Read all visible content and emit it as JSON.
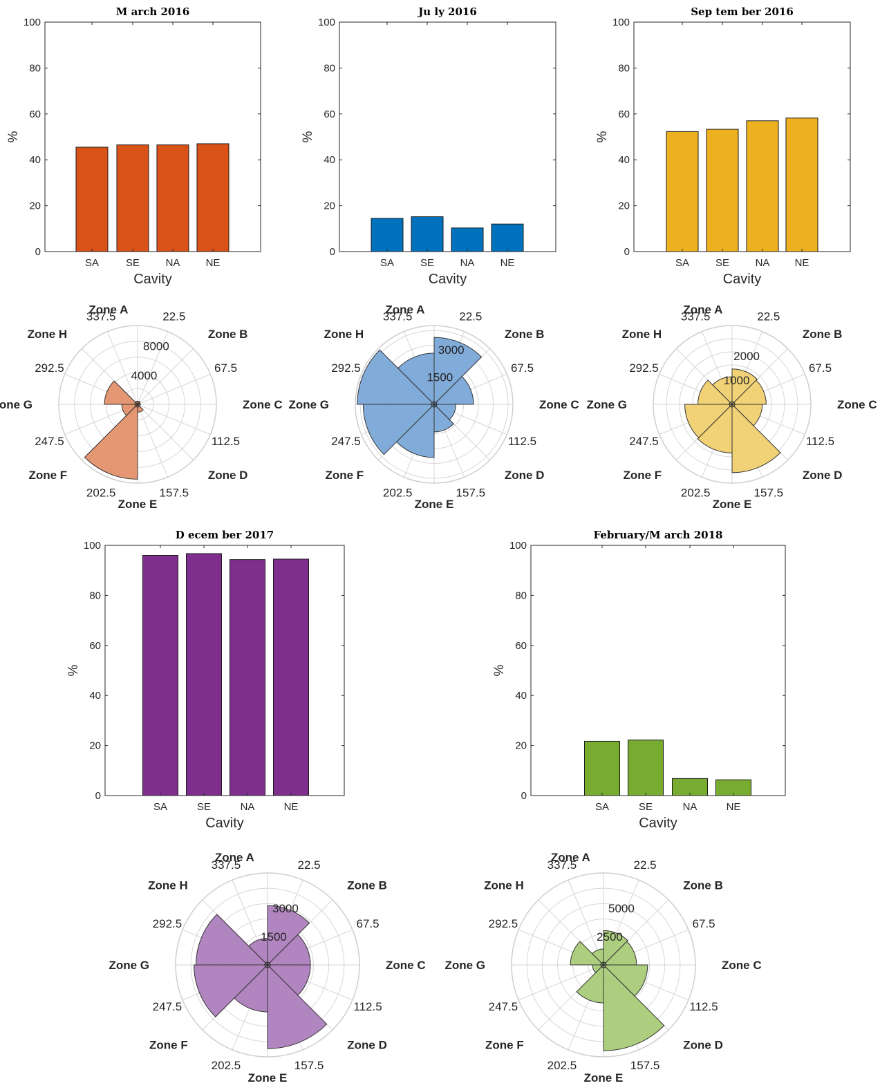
{
  "chart_data": [
    {
      "type": "bar",
      "title": "M arch 2016",
      "categories": [
        "SA",
        "SE",
        "NA",
        "NE"
      ],
      "values": [
        45.5,
        46.5,
        46.5,
        47
      ],
      "ylabel": "%",
      "xlabel": "Cavity",
      "ylim": [
        0,
        100
      ],
      "yticks": [
        0,
        20,
        40,
        60,
        80,
        100
      ],
      "color": "#D95319"
    },
    {
      "type": "polar-histogram",
      "angle_labels": [
        "22.5",
        "67.5",
        "112.5",
        "157.5",
        "202.5",
        "247.5",
        "292.5",
        "337.5"
      ],
      "zone_labels": [
        "Zone A",
        "Zone B",
        "Zone C",
        "Zone D",
        "Zone E",
        "Zone F",
        "Zone G",
        "Zone H"
      ],
      "rlim": [
        0,
        10000
      ],
      "rticks": [
        4000,
        8000
      ],
      "values": [
        400,
        300,
        200,
        1000,
        9500,
        2000,
        4200,
        400
      ],
      "color": "#E3916A"
    },
    {
      "type": "bar",
      "title": "Ju ly 2016",
      "categories": [
        "SA",
        "SE",
        "NA",
        "NE"
      ],
      "values": [
        14.5,
        15.2,
        10.3,
        12
      ],
      "ylabel": "%",
      "xlabel": "Cavity",
      "ylim": [
        0,
        100
      ],
      "yticks": [
        0,
        20,
        40,
        60,
        80,
        100
      ],
      "color": "#0072BD"
    },
    {
      "type": "polar-histogram",
      "angle_labels": [
        "22.5",
        "67.5",
        "112.5",
        "157.5",
        "202.5",
        "247.5",
        "292.5",
        "337.5"
      ],
      "zone_labels": [
        "Zone A",
        "Zone B",
        "Zone C",
        "Zone D",
        "Zone E",
        "Zone F",
        "Zone G",
        "Zone H"
      ],
      "rlim": [
        0,
        4000
      ],
      "rticks": [
        1500,
        3000
      ],
      "values": [
        3400,
        2000,
        1100,
        1400,
        2700,
        3600,
        3900,
        2600
      ],
      "color": "#7AA8D8"
    },
    {
      "type": "bar",
      "title": "Sep tem ber 2016",
      "categories": [
        "SA",
        "SE",
        "NA",
        "NE"
      ],
      "values": [
        52.3,
        53.3,
        57,
        58.2
      ],
      "ylabel": "%",
      "xlabel": "Cavity",
      "ylim": [
        0,
        100
      ],
      "yticks": [
        0,
        20,
        40,
        60,
        80,
        100
      ],
      "color": "#EDB120"
    },
    {
      "type": "polar-histogram",
      "angle_labels": [
        "22.5",
        "67.5",
        "112.5",
        "157.5",
        "202.5",
        "247.5",
        "292.5",
        "337.5"
      ],
      "zone_labels": [
        "Zone A",
        "Zone B",
        "Zone C",
        "Zone D",
        "Zone E",
        "Zone F",
        "Zone G",
        "Zone H"
      ],
      "rlim": [
        0,
        3000
      ],
      "rticks": [
        1000,
        2000
      ],
      "values": [
        1350,
        1300,
        1150,
        2600,
        1850,
        1800,
        1300,
        1050
      ],
      "color": "#F0D070"
    },
    {
      "type": "bar",
      "title": "D ecem ber 2017",
      "categories": [
        "SA",
        "SE",
        "NA",
        "NE"
      ],
      "values": [
        96,
        96.7,
        94.3,
        94.5
      ],
      "ylabel": "%",
      "xlabel": "Cavity",
      "ylim": [
        0,
        100
      ],
      "yticks": [
        0,
        20,
        40,
        60,
        80,
        100
      ],
      "color": "#7E2F8E"
    },
    {
      "type": "polar-histogram",
      "angle_labels": [
        "22.5",
        "67.5",
        "112.5",
        "157.5",
        "202.5",
        "247.5",
        "292.5",
        "337.5"
      ],
      "zone_labels": [
        "Zone A",
        "Zone B",
        "Zone C",
        "Zone D",
        "Zone E",
        "Zone F",
        "Zone G",
        "Zone H"
      ],
      "rlim": [
        0,
        4500
      ],
      "rticks": [
        1500,
        3000
      ],
      "values": [
        2900,
        2100,
        2100,
        4100,
        2300,
        3600,
        3500,
        1300
      ],
      "color": "#AD80BD"
    },
    {
      "type": "bar",
      "title": "February/M arch 2018",
      "categories": [
        "SA",
        "SE",
        "NA",
        "NE"
      ],
      "values": [
        21.7,
        22.2,
        6.8,
        6.3
      ],
      "ylabel": "%",
      "xlabel": "Cavity",
      "ylim": [
        0,
        100
      ],
      "yticks": [
        0,
        20,
        40,
        60,
        80,
        100
      ],
      "color": "#77AC30"
    },
    {
      "type": "polar-histogram",
      "angle_labels": [
        "22.5",
        "67.5",
        "112.5",
        "157.5",
        "202.5",
        "247.5",
        "292.5",
        "337.5"
      ],
      "zone_labels": [
        "Zone A",
        "Zone B",
        "Zone C",
        "Zone D",
        "Zone E",
        "Zone F",
        "Zone G",
        "Zone H"
      ],
      "rlim": [
        0,
        7500
      ],
      "rticks": [
        2500,
        5000
      ],
      "values": [
        2800,
        2700,
        3600,
        7000,
        3100,
        900,
        2700,
        1300
      ],
      "color": "#A9CB78"
    }
  ]
}
